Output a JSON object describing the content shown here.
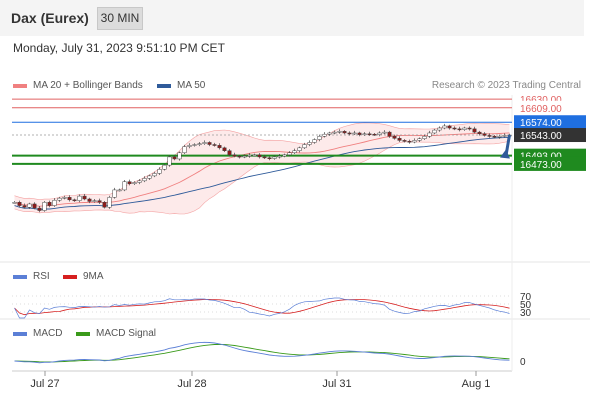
{
  "header": {
    "instrument": "Dax (Eurex)",
    "timeframe": "30 MIN",
    "datetime": "Monday, July 31, 2023 9:51:10 PM CET",
    "credit": "Research © 2023 Trading Central"
  },
  "legends": {
    "bb": "MA 20 + Bollinger Bands",
    "ma50": "MA 50",
    "rsi": "RSI",
    "rsi_ma": "9MA",
    "macd": "MACD",
    "macd_signal": "MACD Signal"
  },
  "colors": {
    "bollinger": "#f08080",
    "bollinger_fill": "#fde6e6",
    "ma50": "#2f5b9a",
    "resistance": "#e06060",
    "pivot": "#1f6fe0",
    "support": "#1f8a1f",
    "current": "#333333",
    "rsi": "#5b7fd6",
    "rsi_ma": "#d62020",
    "macd": "#5b7fd6",
    "macd_signal": "#3a9a1a",
    "arrow": "#2f5b9a"
  },
  "chart_data": [
    {
      "type": "candlestick",
      "title": "Dax (Eurex)",
      "x_ticks": [
        "Jul 27",
        "Jul 28",
        "Jul 31",
        "Aug 1"
      ],
      "ylim": [
        16245,
        16640
      ],
      "levels": [
        {
          "label": "16630.00",
          "value": 16630,
          "kind": "resistance"
        },
        {
          "label": "16609.00",
          "value": 16609,
          "kind": "resistance"
        },
        {
          "label": "16574.00",
          "value": 16574,
          "kind": "pivot"
        },
        {
          "label": "16543.00",
          "value": 16543,
          "kind": "current"
        },
        {
          "label": "16493.00",
          "value": 16493,
          "kind": "support"
        },
        {
          "label": "16473.00",
          "value": 16473,
          "kind": "support"
        }
      ],
      "price_path": [
        16380,
        16372,
        16368,
        16376,
        16366,
        16360,
        16380,
        16372,
        16385,
        16390,
        16392,
        16386,
        16384,
        16395,
        16388,
        16382,
        16384,
        16380,
        16368,
        16392,
        16410,
        16410,
        16430,
        16425,
        16428,
        16432,
        16438,
        16444,
        16450,
        16460,
        16470,
        16490,
        16485,
        16500,
        16515,
        16518,
        16520,
        16522,
        16525,
        16520,
        16518,
        16512,
        16505,
        16495,
        16492,
        16490,
        16492,
        16494,
        16495,
        16490,
        16488,
        16486,
        16490,
        16492,
        16495,
        16500,
        16505,
        16512,
        16520,
        16525,
        16532,
        16540,
        16545,
        16548,
        16550,
        16552,
        16548,
        16546,
        16548,
        16544,
        16546,
        16545,
        16544,
        16548,
        16550,
        16540,
        16535,
        16530,
        16528,
        16526,
        16530,
        16534,
        16540,
        16548,
        16555,
        16560,
        16565,
        16560,
        16558,
        16556,
        16560,
        16558,
        16550,
        16546,
        16542,
        16540,
        16538,
        16540,
        16542,
        16543
      ]
    },
    {
      "type": "line",
      "title": "RSI",
      "levels": [
        70,
        50,
        30
      ],
      "series": [
        {
          "name": "RSI"
        },
        {
          "name": "9MA"
        }
      ]
    },
    {
      "type": "line",
      "title": "MACD",
      "levels": [
        0
      ],
      "series": [
        {
          "name": "MACD"
        },
        {
          "name": "MACD Signal"
        }
      ]
    }
  ]
}
